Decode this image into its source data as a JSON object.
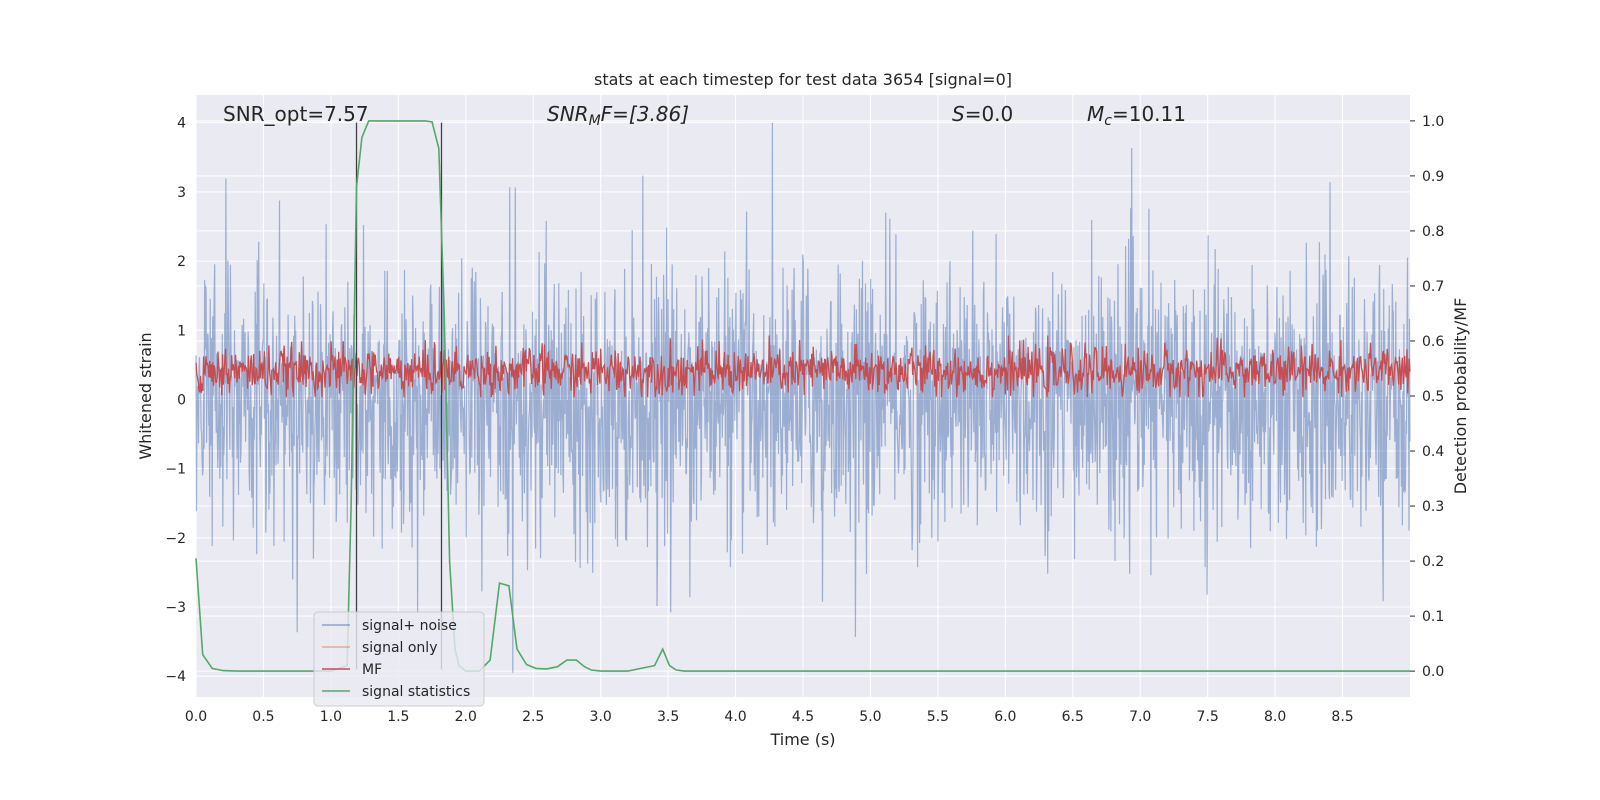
{
  "chart_data": {
    "type": "line",
    "title": "stats at each timestep for test data 3654 [signal=0]",
    "xlabel": "Time (s)",
    "ylabel_left": "Whitened strain",
    "ylabel_right": "Detection probability/MF",
    "xlim": [
      0.0,
      9.0
    ],
    "ylim_left": [
      -4.3,
      4.4
    ],
    "ylim_right": [
      -0.047,
      1.047
    ],
    "x_ticks": [
      "0.0",
      "0.5",
      "1.0",
      "1.5",
      "2.0",
      "2.5",
      "3.0",
      "3.5",
      "4.0",
      "4.5",
      "5.0",
      "5.5",
      "6.0",
      "6.5",
      "7.0",
      "7.5",
      "8.0",
      "8.5"
    ],
    "y_ticks_left": [
      "4",
      "3",
      "2",
      "1",
      "0",
      "−1",
      "−2",
      "−3",
      "−4"
    ],
    "y_ticks_right": [
      "1.0",
      "0.9",
      "0.8",
      "0.7",
      "0.6",
      "0.5",
      "0.4",
      "0.3",
      "0.2",
      "0.1",
      "0.0"
    ],
    "grid": true,
    "legend_position": "lower-left",
    "colors": {
      "background": "#eaeaf2",
      "noise": "#4c72b0",
      "signal": "#dd8452",
      "mf": "#c44e52",
      "stats": "#55a868",
      "vline": "#404040"
    },
    "annotations": {
      "snr_opt": "SNR_opt=7.57",
      "snr_mf_base": "SNR",
      "snr_mf_sub": "M",
      "snr_mf_rest": "F=[3.86]",
      "s_label": "S",
      "s_rest": "=0.0",
      "mc_base": "M",
      "mc_sub": "c",
      "mc_rest": "=10.11"
    },
    "vertical_lines": [
      1.19,
      1.82
    ],
    "series": [
      {
        "name": "signal+ noise",
        "description": "whitened strain noise, roughly symmetric, typical range about -2 to 2 with spikes up to 4 and down to -3.9"
      },
      {
        "name": "signal only",
        "values": []
      },
      {
        "name": "MF",
        "description": "matched-filter output on right axis, fluctuating between about 0.5 and 0.6"
      },
      {
        "name": "signal statistics",
        "x": [
          0.0,
          0.05,
          0.12,
          0.2,
          0.3,
          1.0,
          1.12,
          1.15,
          1.19,
          1.23,
          1.28,
          1.4,
          1.55,
          1.7,
          1.75,
          1.8,
          1.84,
          1.88,
          1.92,
          1.95,
          2.0,
          2.1,
          2.18,
          2.25,
          2.32,
          2.38,
          2.45,
          2.52,
          2.6,
          2.68,
          2.75,
          2.82,
          2.88,
          2.93,
          3.0,
          3.2,
          3.4,
          3.46,
          3.51,
          3.56,
          3.62,
          3.7,
          9.0
        ],
        "values": [
          0.205,
          0.03,
          0.005,
          0.001,
          0.0,
          0.0,
          0.01,
          0.3,
          0.88,
          0.97,
          1.0,
          1.0,
          1.0,
          1.0,
          0.998,
          0.95,
          0.65,
          0.2,
          0.04,
          0.01,
          0.0,
          0.0,
          0.02,
          0.16,
          0.155,
          0.04,
          0.012,
          0.005,
          0.004,
          0.008,
          0.02,
          0.02,
          0.008,
          0.002,
          0.0,
          0.0,
          0.01,
          0.04,
          0.01,
          0.002,
          0.0,
          0.0,
          0.0
        ]
      }
    ]
  },
  "legend": {
    "noise": "signal+ noise",
    "signal": "signal only",
    "mf": "MF",
    "stats": "signal statistics"
  }
}
